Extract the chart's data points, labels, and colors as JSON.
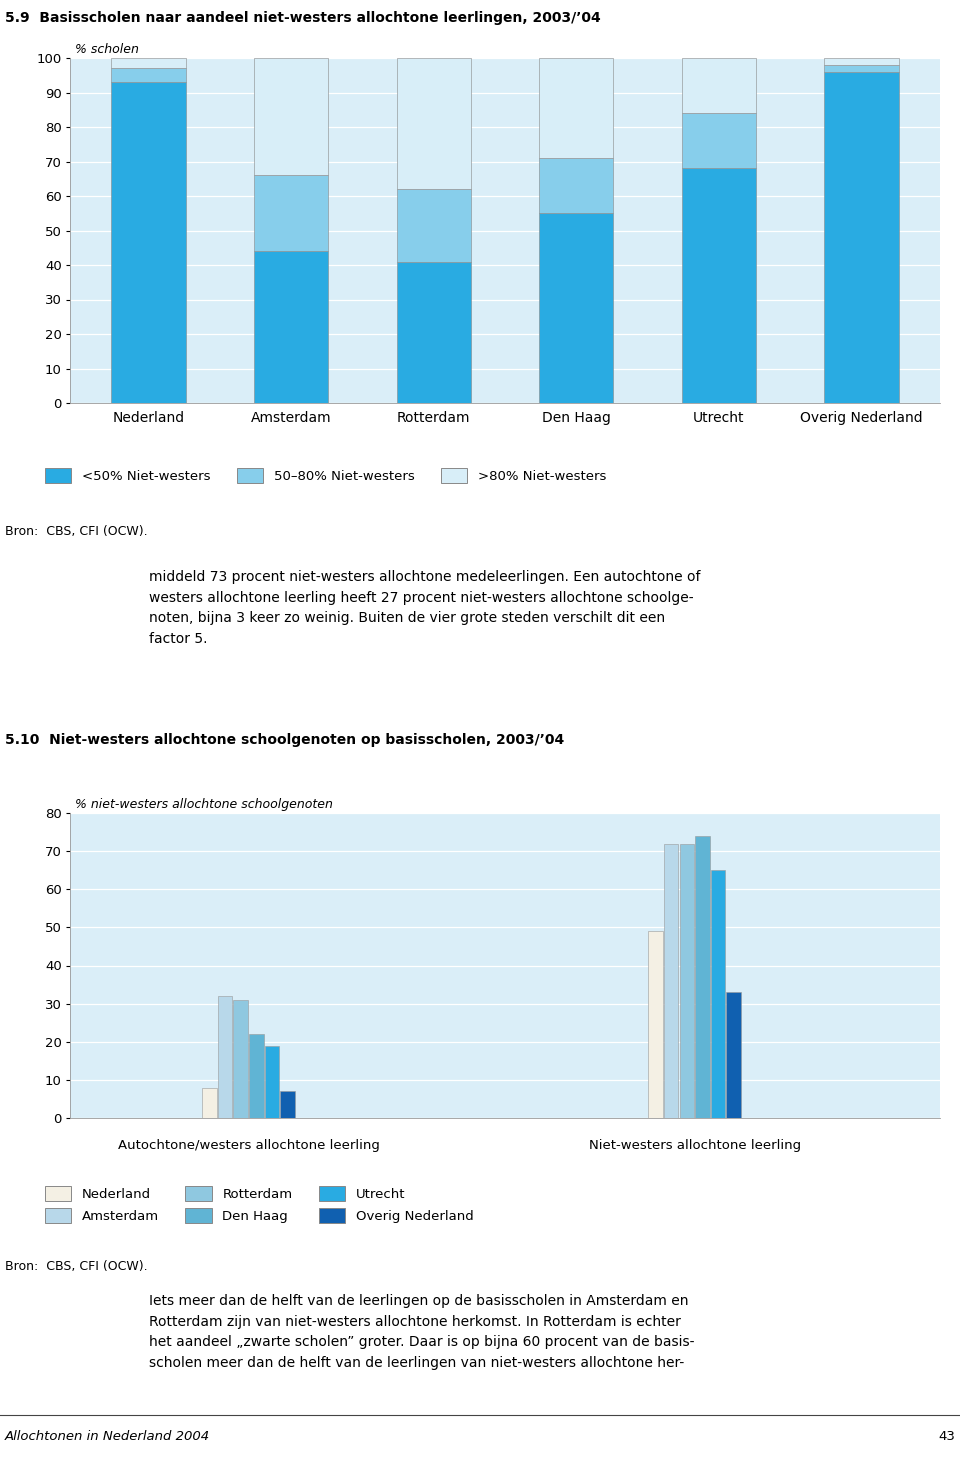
{
  "chart1": {
    "title": "5.9  Basisscholen naar aandeel niet-westers allochtone leerlingen, 2003/’04",
    "ylabel": "% scholen",
    "categories": [
      "Nederland",
      "Amsterdam",
      "Rotterdam",
      "Den Haag",
      "Utrecht",
      "Overig Nederland"
    ],
    "series": [
      {
        "label": "<50% Niet-westers",
        "color": "#29abe2",
        "values": [
          93,
          44,
          41,
          55,
          68,
          96
        ]
      },
      {
        "label": "50–80% Niet-westers",
        "color": "#87ceeb",
        "values": [
          4,
          22,
          21,
          16,
          16,
          2
        ]
      },
      {
        "label": ">80% Niet-westers",
        "color": "#d8eef8",
        "values": [
          3,
          34,
          38,
          29,
          16,
          2
        ]
      }
    ],
    "ylim": [
      0,
      100
    ],
    "yticks": [
      0,
      10,
      20,
      30,
      40,
      50,
      60,
      70,
      80,
      90,
      100
    ],
    "bg_color": "#daeef8",
    "source": "Bron:  CBS, CFI (OCW)."
  },
  "text_block": "middeld 73 procent niet-westers allochtone medeleerlingen. Een autochtone of\nwesters allochtone leerling heeft 27 procent niet-westers allochtone schoolge-\nnoten, bijna 3 keer zo weinig. Buiten de vier grote steden verschilt dit een\nfactor 5.",
  "chart2": {
    "title": "5.10  Niet-westers allochtone schoolgenoten op basisscholen, 2003/’04",
    "ylabel": "% niet-westers allochtone schoolgenoten",
    "groups": [
      "Autochtone/westers allochtone leerling",
      "Niet-westers allochtone leerling"
    ],
    "series": [
      {
        "label": "Nederland",
        "color": "#f4f0e4",
        "edge_color": "#999999",
        "values": [
          8,
          49
        ]
      },
      {
        "label": "Amsterdam",
        "color": "#b8d8ea",
        "edge_color": "#999999",
        "values": [
          32,
          72
        ]
      },
      {
        "label": "Rotterdam",
        "color": "#8fc8e0",
        "edge_color": "#999999",
        "values": [
          31,
          72
        ]
      },
      {
        "label": "Den Haag",
        "color": "#60b4d4",
        "edge_color": "#999999",
        "values": [
          22,
          74
        ]
      },
      {
        "label": "Utrecht",
        "color": "#29abe2",
        "edge_color": "#999999",
        "values": [
          19,
          65
        ]
      },
      {
        "label": "Overig Nederland",
        "color": "#1060b0",
        "edge_color": "#999999",
        "values": [
          7,
          33
        ]
      }
    ],
    "ylim": [
      0,
      80
    ],
    "yticks": [
      0,
      10,
      20,
      30,
      40,
      50,
      60,
      70,
      80
    ],
    "bg_color": "#daeef8",
    "source": "Bron:  CBS, CFI (OCW)."
  },
  "footer_text": "Allochtonen in Nederland 2004",
  "page_number": "43",
  "bg_page": "#ffffff"
}
